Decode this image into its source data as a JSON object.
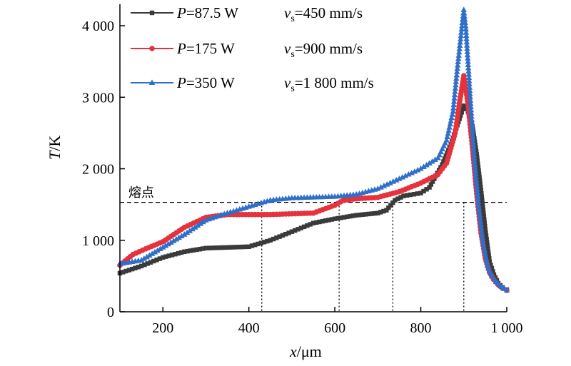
{
  "chart_data": {
    "type": "line",
    "xlabel": {
      "var": "x",
      "unit": "/μm"
    },
    "ylabel": {
      "var": "T",
      "unit": "/K"
    },
    "xlim": [
      100,
      1000
    ],
    "ylim": [
      0,
      4300
    ],
    "x_ticks": [
      200,
      400,
      600,
      800,
      1000
    ],
    "x_tick_labels": [
      "200",
      "400",
      "600",
      "800",
      "1 000"
    ],
    "y_ticks": [
      0,
      1000,
      2000,
      3000,
      4000
    ],
    "y_tick_labels": [
      "0",
      "1 000",
      "2 000",
      "3 000",
      "4 000"
    ],
    "grid": false,
    "legend_position": "top-left",
    "melting_point": {
      "label": "熔点",
      "value": 1530
    },
    "crossings_x": [
      430,
      610,
      735,
      900
    ],
    "series": [
      {
        "name": "P=87.5 W",
        "name_var": "P",
        "name_rest": "=87.5 W",
        "speed": "=450 mm/s",
        "color": "#3a3a3a",
        "marker": "square",
        "x": [
          100,
          150,
          200,
          250,
          300,
          350,
          400,
          450,
          500,
          550,
          600,
          650,
          700,
          720,
          740,
          760,
          800,
          820,
          850,
          870,
          890,
          900,
          910,
          920,
          930,
          940,
          950,
          960,
          970,
          980,
          990,
          1000
        ],
        "y": [
          540,
          640,
          760,
          840,
          890,
          900,
          910,
          1000,
          1120,
          1240,
          1300,
          1350,
          1380,
          1420,
          1560,
          1620,
          1660,
          1740,
          2060,
          2340,
          2700,
          2880,
          2800,
          2600,
          2200,
          1700,
          1150,
          700,
          520,
          400,
          340,
          310
        ]
      },
      {
        "name": "P=175 W",
        "name_var": "P",
        "name_rest": "=175 W",
        "speed": "=900 mm/s",
        "color": "#e6323c",
        "marker": "circle",
        "x": [
          100,
          130,
          160,
          200,
          250,
          300,
          350,
          400,
          450,
          500,
          550,
          600,
          620,
          650,
          700,
          750,
          800,
          840,
          860,
          880,
          890,
          900,
          910,
          920,
          930,
          940,
          950,
          960,
          970,
          980,
          990,
          1000
        ],
        "y": [
          650,
          800,
          880,
          980,
          1180,
          1320,
          1360,
          1360,
          1360,
          1370,
          1380,
          1490,
          1560,
          1580,
          1600,
          1680,
          1800,
          1920,
          2080,
          2500,
          2920,
          3300,
          2900,
          2300,
          1650,
          1100,
          750,
          550,
          450,
          380,
          330,
          300
        ]
      },
      {
        "name": "P=350 W",
        "name_var": "P",
        "name_rest": "=350 W",
        "speed": "=1 800 mm/s",
        "color": "#2e6fc9",
        "marker": "triangle",
        "x": [
          100,
          150,
          200,
          250,
          300,
          350,
          400,
          450,
          500,
          550,
          600,
          650,
          700,
          750,
          800,
          840,
          860,
          875,
          885,
          895,
          900,
          905,
          915,
          925,
          935,
          945,
          955,
          965,
          975,
          985,
          995,
          1000
        ],
        "y": [
          670,
          720,
          900,
          1080,
          1280,
          1380,
          1470,
          1560,
          1590,
          1600,
          1610,
          1640,
          1720,
          1860,
          2000,
          2150,
          2400,
          2800,
          3400,
          3950,
          4220,
          3950,
          3000,
          2100,
          1450,
          950,
          650,
          500,
          420,
          360,
          320,
          300
        ]
      }
    ],
    "speed_var": "v",
    "speed_sub": "s"
  }
}
